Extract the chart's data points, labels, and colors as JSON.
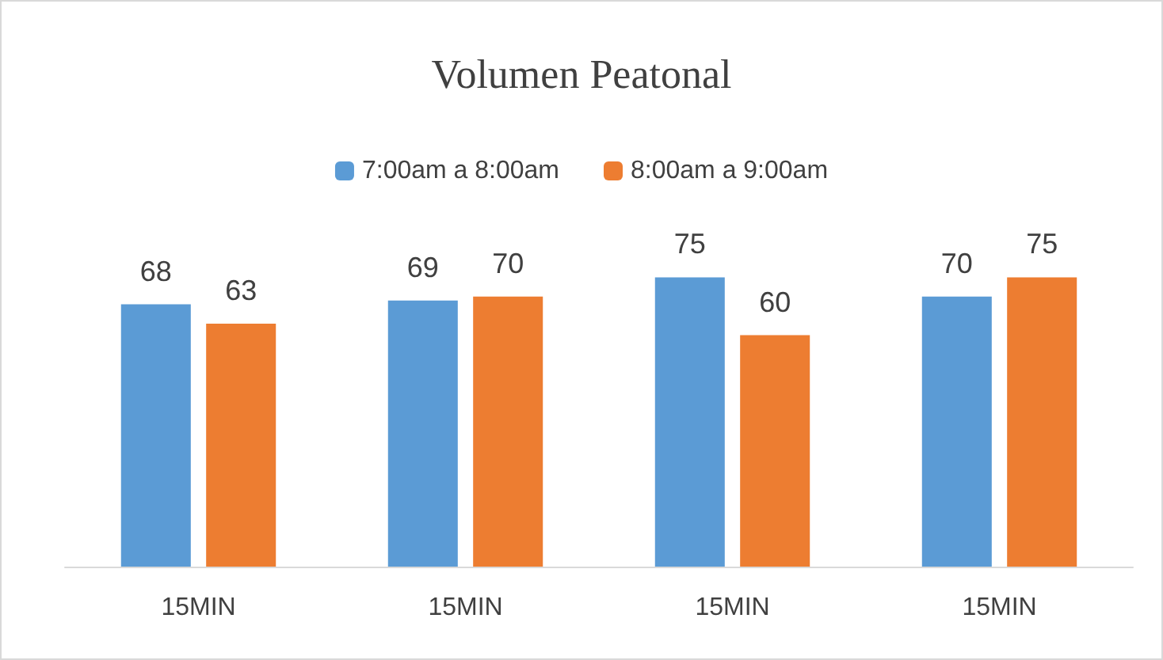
{
  "chart_data": {
    "type": "bar",
    "title": "Volumen Peatonal",
    "categories": [
      "15MIN",
      "15MIN",
      "15MIN",
      "15MIN"
    ],
    "series": [
      {
        "name": "7:00am a 8:00am",
        "color": "#5b9bd5",
        "values": [
          68,
          69,
          75,
          70
        ]
      },
      {
        "name": "8:00am a 9:00am",
        "color": "#ed7d31",
        "values": [
          63,
          70,
          60,
          75
        ]
      }
    ],
    "tick_labels": "x",
    "data_labels": true,
    "grid": false,
    "legend": "top"
  }
}
